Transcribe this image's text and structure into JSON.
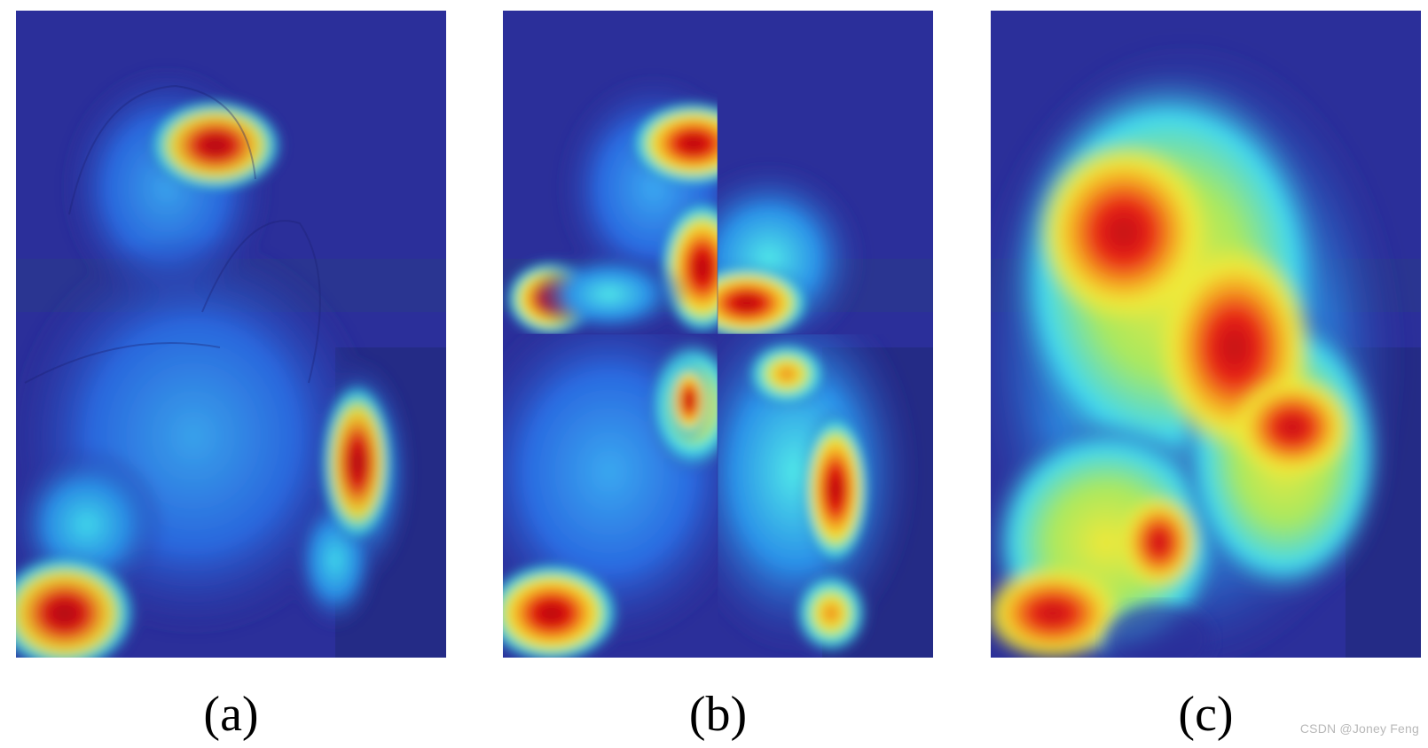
{
  "figure": {
    "panels": [
      {
        "id": "a",
        "caption": "(a)"
      },
      {
        "id": "b",
        "caption": "(b)"
      },
      {
        "id": "c",
        "caption": "(c)"
      }
    ],
    "watermark": "CSDN @Joney Feng",
    "colors": {
      "heatmap_low": "#2b2f9a",
      "heatmap_mid_low": "#1fb8e8",
      "heatmap_mid": "#f2e53a",
      "heatmap_mid_high": "#f59c1a",
      "heatmap_high": "#e01010",
      "heatmap_peak": "#8a0a0a"
    }
  }
}
